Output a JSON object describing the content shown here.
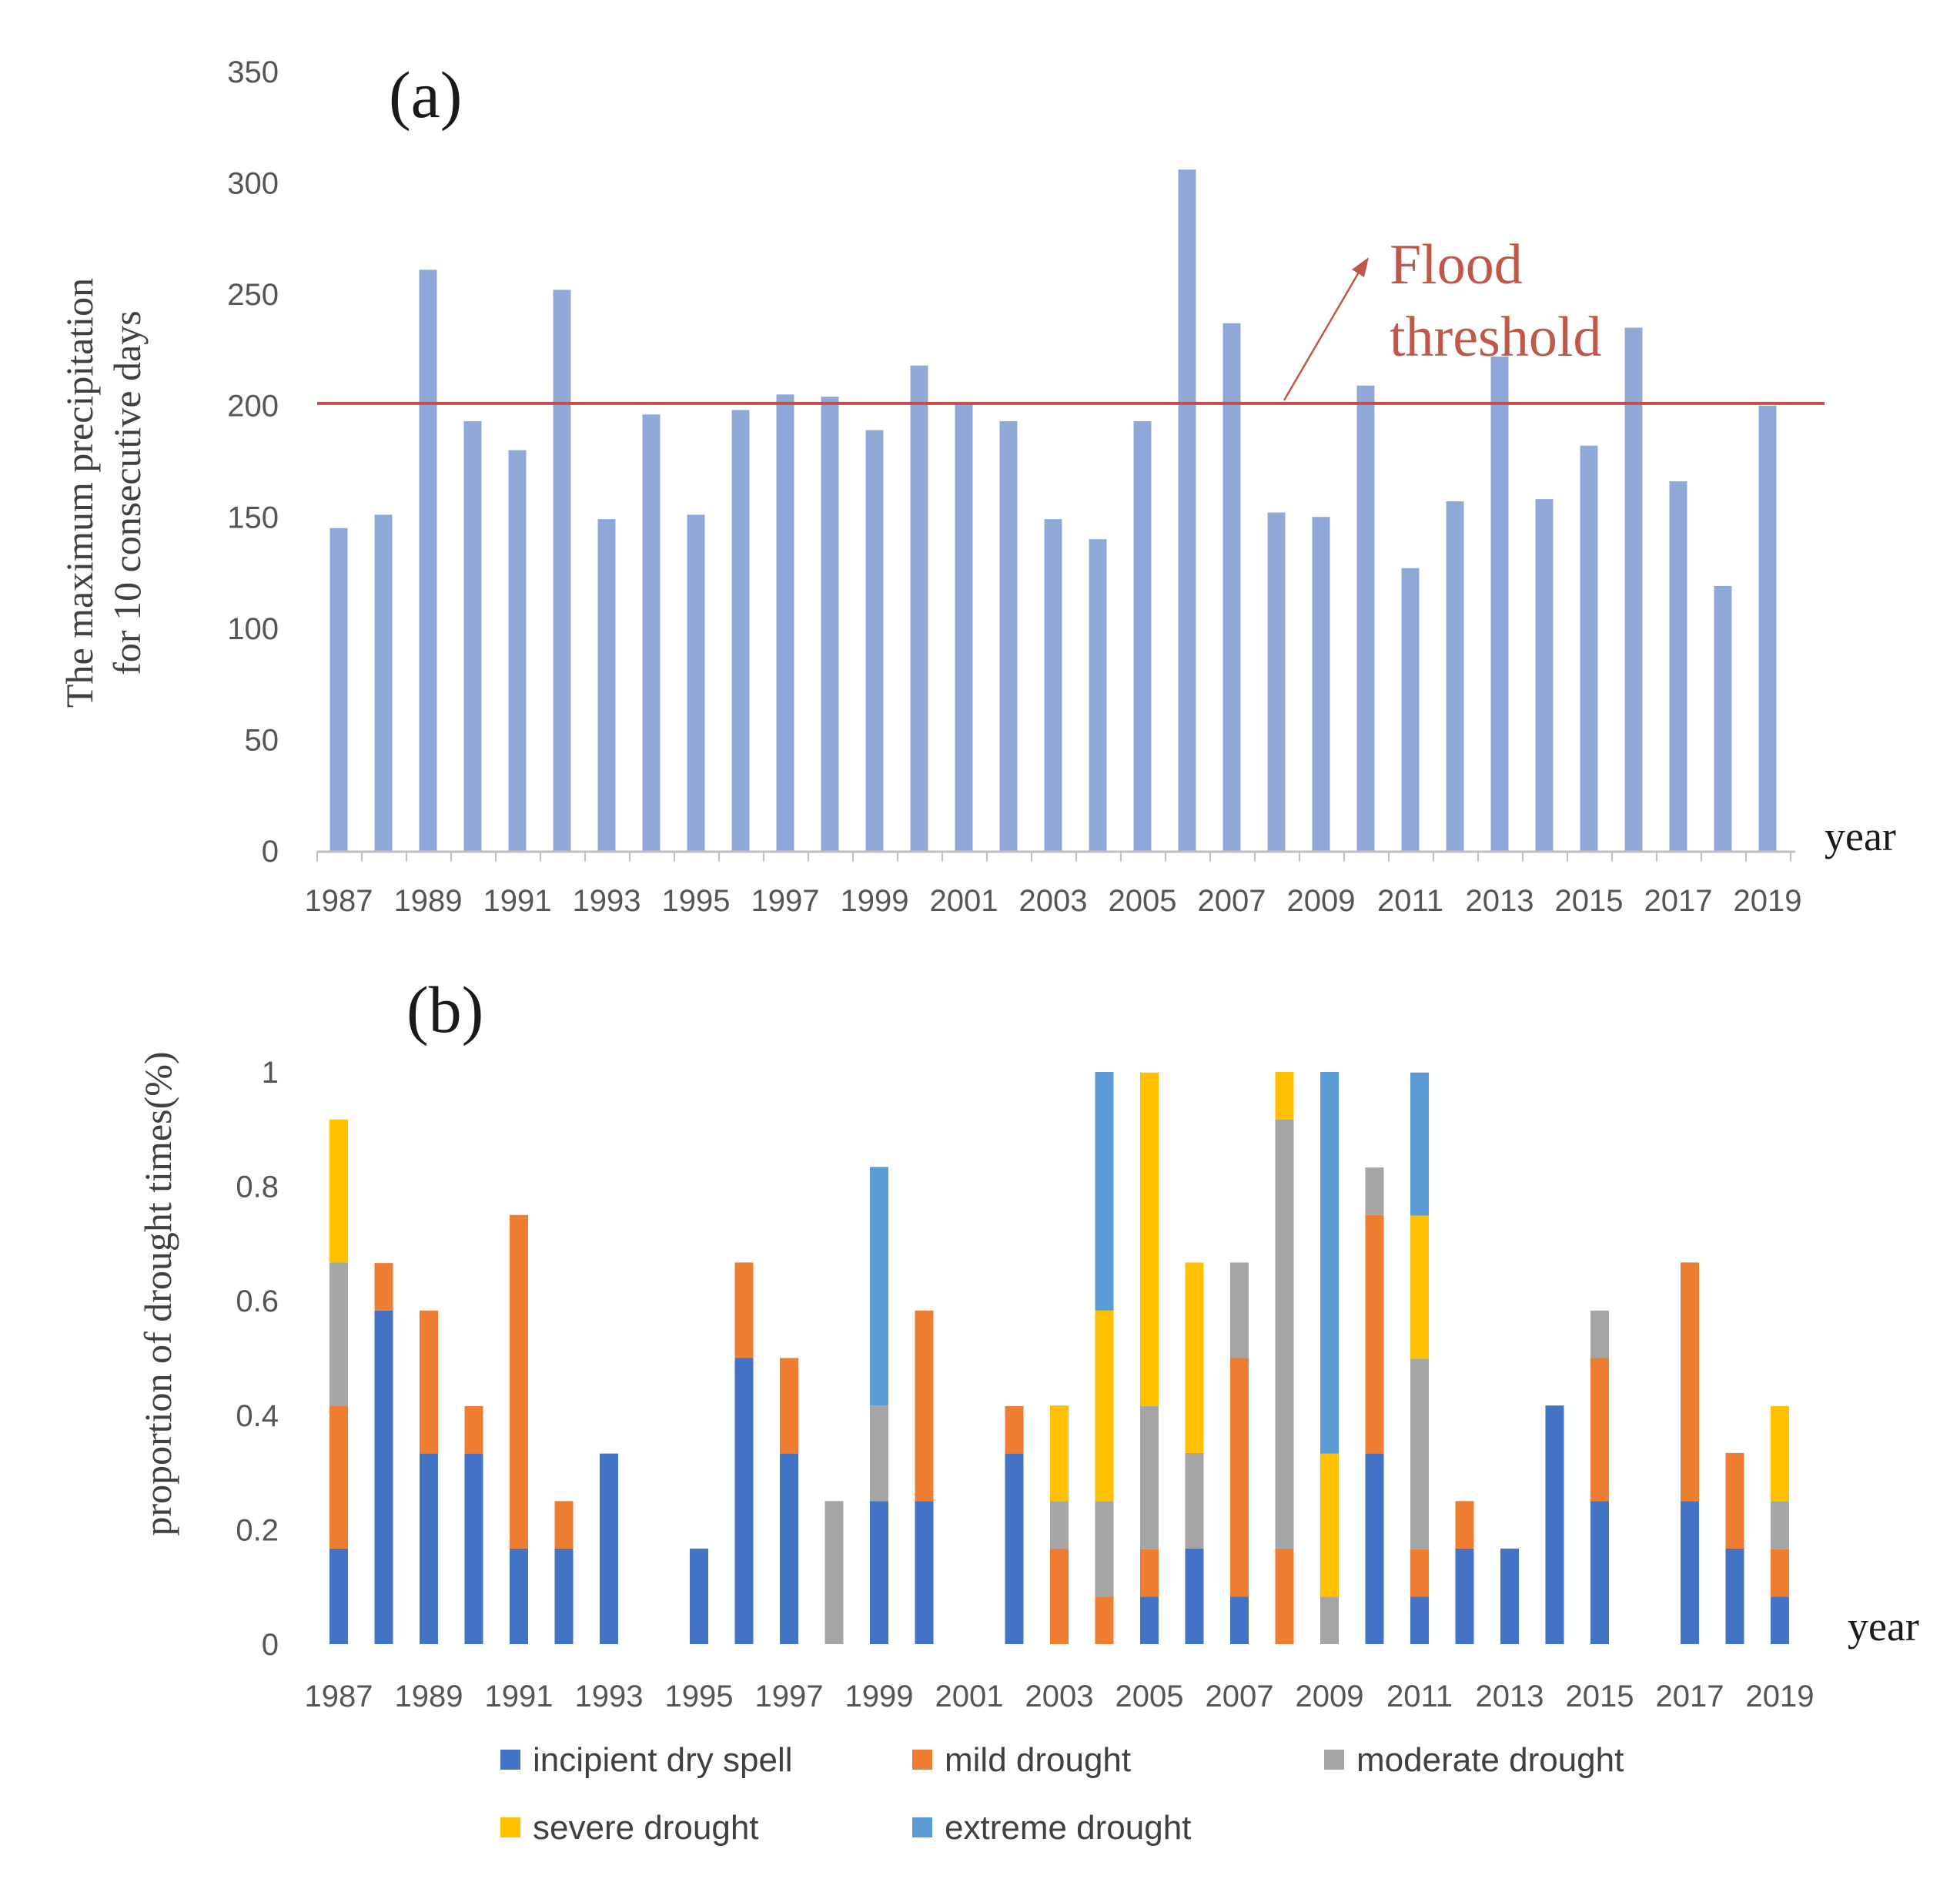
{
  "chart_data": [
    {
      "type": "bar",
      "panel_label": "(a)",
      "ylabel_line1": "The maximum precipitation",
      "ylabel_line2": "for 10 consecutive days",
      "xlabel": "year",
      "ylim": [
        0,
        350
      ],
      "yticks": [
        0,
        50,
        100,
        150,
        200,
        250,
        300,
        350
      ],
      "x": [
        1987,
        1988,
        1989,
        1990,
        1991,
        1992,
        1993,
        1994,
        1995,
        1996,
        1997,
        1998,
        1999,
        2000,
        2001,
        2002,
        2003,
        2004,
        2005,
        2006,
        2007,
        2008,
        2009,
        2010,
        2011,
        2012,
        2013,
        2014,
        2015,
        2016,
        2017,
        2018,
        2019
      ],
      "xtick_labels": [
        "1987",
        "1989",
        "1991",
        "1993",
        "1995",
        "1997",
        "1999",
        "2001",
        "2003",
        "2005",
        "2007",
        "2009",
        "2011",
        "2013",
        "2015",
        "2017",
        "2019"
      ],
      "values": [
        145,
        151,
        261,
        193,
        180,
        252,
        149,
        196,
        151,
        198,
        205,
        204,
        189,
        218,
        201,
        193,
        149,
        140,
        193,
        306,
        237,
        152,
        150,
        209,
        127,
        157,
        222,
        158,
        182,
        235,
        166,
        119,
        200
      ],
      "bar_color": "#8fa8d8",
      "threshold": {
        "value": 201,
        "label_line1": "Flood",
        "label_line2": "threshold",
        "color": "#c0504d"
      }
    },
    {
      "type": "bar",
      "stacked": true,
      "panel_label": "(b)",
      "ylabel": "proportion of drought times(%)",
      "xlabel": "year",
      "ylim": [
        0,
        1
      ],
      "yticks": [
        0,
        0.2,
        0.4,
        0.6,
        0.8,
        1
      ],
      "ytick_labels": [
        "0",
        "0.2",
        "0.4",
        "0.6",
        "0.8",
        "1"
      ],
      "x": [
        1987,
        1988,
        1989,
        1990,
        1991,
        1992,
        1993,
        1994,
        1995,
        1996,
        1997,
        1998,
        1999,
        2000,
        2001,
        2002,
        2003,
        2004,
        2005,
        2006,
        2007,
        2008,
        2009,
        2010,
        2011,
        2012,
        2013,
        2014,
        2015,
        2016,
        2017,
        2018,
        2019
      ],
      "xtick_labels": [
        "1987",
        "1989",
        "1991",
        "1993",
        "1995",
        "1997",
        "1999",
        "2001",
        "2003",
        "2005",
        "2007",
        "2009",
        "2011",
        "2013",
        "2015",
        "2017",
        "2019"
      ],
      "series": [
        {
          "name": "incipient dry spell",
          "color": "#4472c4",
          "values": [
            0.167,
            0.583,
            0.333,
            0.333,
            0.167,
            0.167,
            0.333,
            0,
            0.167,
            0.5,
            0.333,
            0,
            0.25,
            0.25,
            0,
            0.333,
            0,
            0,
            0.083,
            0.167,
            0.083,
            0,
            0,
            0.333,
            0.083,
            0.167,
            0.167,
            0.417,
            0.25,
            0,
            0.25,
            0.167,
            0.083
          ]
        },
        {
          "name": "mild drought",
          "color": "#ed7d31",
          "values": [
            0.25,
            0.083,
            0.25,
            0.083,
            0.583,
            0.083,
            0,
            0,
            0,
            0.167,
            0.167,
            0,
            0,
            0.333,
            0,
            0.083,
            0.167,
            0.083,
            0.083,
            0,
            0.417,
            0.167,
            0,
            0.417,
            0.083,
            0.083,
            0,
            0,
            0.25,
            0,
            0.417,
            0.167,
            0.083
          ]
        },
        {
          "name": "moderate drought",
          "color": "#a5a5a5",
          "values": [
            0.25,
            0,
            0,
            0,
            0,
            0,
            0,
            0,
            0,
            0,
            0,
            0.25,
            0.167,
            0,
            0,
            0,
            0.083,
            0.167,
            0.25,
            0.167,
            0.167,
            0.75,
            0.083,
            0.083,
            0.333,
            0,
            0,
            0,
            0.083,
            0,
            0,
            0,
            0.083
          ]
        },
        {
          "name": "severe drought",
          "color": "#ffc000",
          "values": [
            0.25,
            0,
            0,
            0,
            0,
            0,
            0,
            0,
            0,
            0,
            0,
            0,
            0,
            0,
            0,
            0,
            0.167,
            0.333,
            0.583,
            0.333,
            0,
            0.083,
            0.25,
            0,
            0.25,
            0,
            0,
            0,
            0,
            0,
            0,
            0,
            0.167
          ]
        },
        {
          "name": "extreme drought",
          "color": "#5b9bd5",
          "values": [
            0,
            0,
            0,
            0,
            0,
            0,
            0,
            0,
            0,
            0,
            0,
            0,
            0.417,
            0,
            0,
            0,
            0,
            0.417,
            0,
            0,
            0,
            0,
            0.667,
            0,
            0.25,
            0,
            0,
            0,
            0,
            0,
            0,
            0,
            0
          ]
        }
      ]
    }
  ]
}
